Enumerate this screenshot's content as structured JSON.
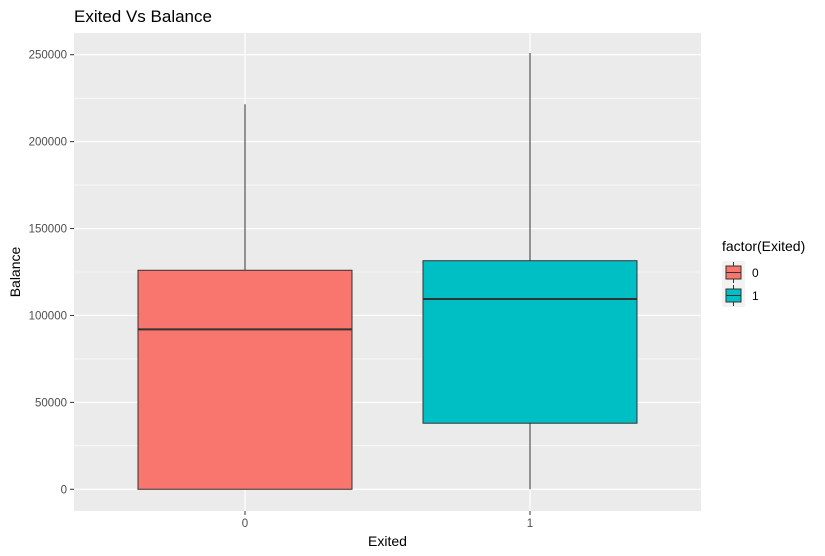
{
  "chart_data": {
    "type": "boxplot",
    "title": "Exited Vs Balance",
    "xlabel": "Exited",
    "ylabel": "Balance",
    "categories": [
      "0",
      "1"
    ],
    "ylim": [
      -12500,
      262500
    ],
    "yticks": [
      0,
      50000,
      100000,
      150000,
      200000,
      250000
    ],
    "yticks_labels": [
      "0",
      "50000",
      "100000",
      "150000",
      "200000",
      "250000"
    ],
    "grid": true,
    "legend": {
      "title": "factor(Exited)",
      "placement": "right",
      "entries": [
        "0",
        "1"
      ]
    },
    "series": [
      {
        "name": "0",
        "color": "#F8766D",
        "min": 0,
        "q1": 0,
        "median": 92000,
        "q3": 126000,
        "max": 221500
      },
      {
        "name": "1",
        "color": "#00BFC4",
        "min": 0,
        "q1": 38000,
        "median": 109500,
        "q3": 131500,
        "max": 251000
      }
    ]
  }
}
